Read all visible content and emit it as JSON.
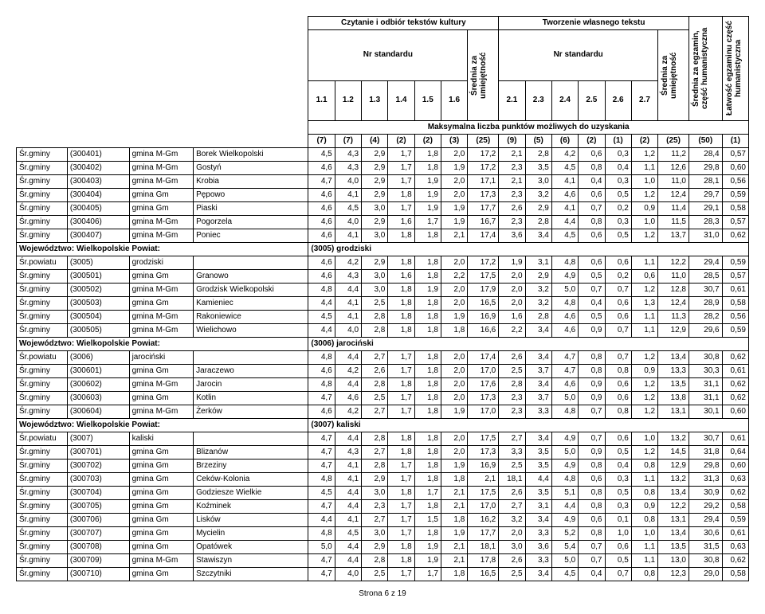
{
  "colors": {
    "text": "#000000",
    "bg": "#ffffff",
    "border": "#000000"
  },
  "headers": {
    "group1": "Czytanie i odbiór tekstów kultury",
    "group2": "Tworzenie własnego tekstu",
    "nrStd": "Nr standardu",
    "sredniaUm": "Średnia za umiejętność",
    "sredniaHum": "Średnia za egzamin, część humanistyczna",
    "latwosc": "Łatwość egzaminu część humanistyczna",
    "cols": [
      "1.1",
      "1.2",
      "1.3",
      "1.4",
      "1.5",
      "1.6",
      "2.1",
      "2.3",
      "2.4",
      "2.5",
      "2.6",
      "2.7"
    ],
    "maxLine": "Maksymalna liczba punktów możliwych do uzyskania",
    "maxVals": [
      "(7)",
      "(7)",
      "(4)",
      "(2)",
      "(2)",
      "(3)",
      "(25)",
      "(9)",
      "(5)",
      "(6)",
      "(2)",
      "(1)",
      "(2)",
      "(25)",
      "(50)",
      "(1)"
    ]
  },
  "rows": [
    {
      "t": "data",
      "sr": "Śr.gminy",
      "code": "(300401)",
      "type": "gmina M-Gm",
      "name": "Borek Wielkopolski",
      "v": [
        "4,5",
        "4,3",
        "2,9",
        "1,7",
        "1,8",
        "2,0",
        "17,2",
        "2,1",
        "2,8",
        "4,2",
        "0,6",
        "0,3",
        "1,2",
        "11,2",
        "28,4",
        "0,57"
      ]
    },
    {
      "t": "data",
      "sr": "Śr.gminy",
      "code": "(300402)",
      "type": "gmina M-Gm",
      "name": "Gostyń",
      "v": [
        "4,6",
        "4,3",
        "2,9",
        "1,7",
        "1,8",
        "1,9",
        "17,2",
        "2,3",
        "3,5",
        "4,5",
        "0,8",
        "0,4",
        "1,1",
        "12,6",
        "29,8",
        "0,60"
      ]
    },
    {
      "t": "data",
      "sr": "Śr.gminy",
      "code": "(300403)",
      "type": "gmina M-Gm",
      "name": "Krobia",
      "v": [
        "4,7",
        "4,0",
        "2,9",
        "1,7",
        "1,9",
        "2,0",
        "17,1",
        "2,1",
        "3,0",
        "4,1",
        "0,4",
        "0,3",
        "1,0",
        "11,0",
        "28,1",
        "0,56"
      ]
    },
    {
      "t": "data",
      "sr": "Śr.gminy",
      "code": "(300404)",
      "type": "gmina Gm",
      "name": "Pępowo",
      "v": [
        "4,6",
        "4,1",
        "2,9",
        "1,8",
        "1,9",
        "2,0",
        "17,3",
        "2,3",
        "3,2",
        "4,6",
        "0,6",
        "0,5",
        "1,2",
        "12,4",
        "29,7",
        "0,59"
      ]
    },
    {
      "t": "data",
      "sr": "Śr.gminy",
      "code": "(300405)",
      "type": "gmina Gm",
      "name": "Piaski",
      "v": [
        "4,6",
        "4,5",
        "3,0",
        "1,7",
        "1,9",
        "1,9",
        "17,7",
        "2,6",
        "2,9",
        "4,1",
        "0,7",
        "0,2",
        "0,9",
        "11,4",
        "29,1",
        "0,58"
      ]
    },
    {
      "t": "data",
      "sr": "Śr.gminy",
      "code": "(300406)",
      "type": "gmina M-Gm",
      "name": "Pogorzela",
      "v": [
        "4,6",
        "4,0",
        "2,9",
        "1,6",
        "1,7",
        "1,9",
        "16,7",
        "2,3",
        "2,8",
        "4,4",
        "0,8",
        "0,3",
        "1,0",
        "11,5",
        "28,3",
        "0,57"
      ]
    },
    {
      "t": "data",
      "sr": "Śr.gminy",
      "code": "(300407)",
      "type": "gmina M-Gm",
      "name": "Poniec",
      "v": [
        "4,6",
        "4,1",
        "3,0",
        "1,8",
        "1,8",
        "2,1",
        "17,4",
        "3,6",
        "3,4",
        "4,5",
        "0,6",
        "0,5",
        "1,2",
        "13,7",
        "31,0",
        "0,62"
      ]
    },
    {
      "t": "group",
      "label": "Województwo:   Wielkopolskie        Powiat:",
      "extra": "(3005) grodziski"
    },
    {
      "t": "data",
      "sr": "Śr.powiatu",
      "code": "(3005)",
      "type": "grodziski",
      "name": "",
      "v": [
        "4,6",
        "4,2",
        "2,9",
        "1,8",
        "1,8",
        "2,0",
        "17,2",
        "1,9",
        "3,1",
        "4,8",
        "0,6",
        "0,6",
        "1,1",
        "12,2",
        "29,4",
        "0,59"
      ]
    },
    {
      "t": "data",
      "sr": "Śr.gminy",
      "code": "(300501)",
      "type": "gmina Gm",
      "name": "Granowo",
      "v": [
        "4,6",
        "4,3",
        "3,0",
        "1,6",
        "1,8",
        "2,2",
        "17,5",
        "2,0",
        "2,9",
        "4,9",
        "0,5",
        "0,2",
        "0,6",
        "11,0",
        "28,5",
        "0,57"
      ]
    },
    {
      "t": "data",
      "sr": "Śr.gminy",
      "code": "(300502)",
      "type": "gmina M-Gm",
      "name": "Grodzisk Wielkopolski",
      "v": [
        "4,8",
        "4,4",
        "3,0",
        "1,8",
        "1,9",
        "2,0",
        "17,9",
        "2,0",
        "3,2",
        "5,0",
        "0,7",
        "0,7",
        "1,2",
        "12,8",
        "30,7",
        "0,61"
      ]
    },
    {
      "t": "data",
      "sr": "Śr.gminy",
      "code": "(300503)",
      "type": "gmina Gm",
      "name": "Kamieniec",
      "v": [
        "4,4",
        "4,1",
        "2,5",
        "1,8",
        "1,8",
        "2,0",
        "16,5",
        "2,0",
        "3,2",
        "4,8",
        "0,4",
        "0,6",
        "1,3",
        "12,4",
        "28,9",
        "0,58"
      ]
    },
    {
      "t": "data",
      "sr": "Śr.gminy",
      "code": "(300504)",
      "type": "gmina M-Gm",
      "name": "Rakoniewice",
      "v": [
        "4,5",
        "4,1",
        "2,8",
        "1,8",
        "1,8",
        "1,9",
        "16,9",
        "1,6",
        "2,8",
        "4,6",
        "0,5",
        "0,6",
        "1,1",
        "11,3",
        "28,2",
        "0,56"
      ]
    },
    {
      "t": "data",
      "sr": "Śr.gminy",
      "code": "(300505)",
      "type": "gmina M-Gm",
      "name": "Wielichowo",
      "v": [
        "4,4",
        "4,0",
        "2,8",
        "1,8",
        "1,8",
        "1,8",
        "16,6",
        "2,2",
        "3,4",
        "4,6",
        "0,9",
        "0,7",
        "1,1",
        "12,9",
        "29,6",
        "0,59"
      ]
    },
    {
      "t": "group",
      "label": "Województwo:   Wielkopolskie        Powiat:",
      "extra": "(3006) jarociński"
    },
    {
      "t": "data",
      "sr": "Śr.powiatu",
      "code": "(3006)",
      "type": "jarociński",
      "name": "",
      "v": [
        "4,8",
        "4,4",
        "2,7",
        "1,7",
        "1,8",
        "2,0",
        "17,4",
        "2,6",
        "3,4",
        "4,7",
        "0,8",
        "0,7",
        "1,2",
        "13,4",
        "30,8",
        "0,62"
      ]
    },
    {
      "t": "data",
      "sr": "Śr.gminy",
      "code": "(300601)",
      "type": "gmina Gm",
      "name": "Jaraczewo",
      "v": [
        "4,6",
        "4,2",
        "2,6",
        "1,7",
        "1,8",
        "2,0",
        "17,0",
        "2,5",
        "3,7",
        "4,7",
        "0,8",
        "0,8",
        "0,9",
        "13,3",
        "30,3",
        "0,61"
      ]
    },
    {
      "t": "data",
      "sr": "Śr.gminy",
      "code": "(300602)",
      "type": "gmina M-Gm",
      "name": "Jarocin",
      "v": [
        "4,8",
        "4,4",
        "2,8",
        "1,8",
        "1,8",
        "2,0",
        "17,6",
        "2,8",
        "3,4",
        "4,6",
        "0,9",
        "0,6",
        "1,2",
        "13,5",
        "31,1",
        "0,62"
      ]
    },
    {
      "t": "data",
      "sr": "Śr.gminy",
      "code": "(300603)",
      "type": "gmina Gm",
      "name": "Kotlin",
      "v": [
        "4,7",
        "4,6",
        "2,5",
        "1,7",
        "1,8",
        "2,0",
        "17,3",
        "2,3",
        "3,7",
        "5,0",
        "0,9",
        "0,6",
        "1,2",
        "13,8",
        "31,1",
        "0,62"
      ]
    },
    {
      "t": "data",
      "sr": "Śr.gminy",
      "code": "(300604)",
      "type": "gmina M-Gm",
      "name": "Żerków",
      "v": [
        "4,6",
        "4,2",
        "2,7",
        "1,7",
        "1,8",
        "1,9",
        "17,0",
        "2,3",
        "3,3",
        "4,8",
        "0,7",
        "0,8",
        "1,2",
        "13,1",
        "30,1",
        "0,60"
      ]
    },
    {
      "t": "group",
      "label": "Województwo:   Wielkopolskie        Powiat:",
      "extra": "(3007) kaliski"
    },
    {
      "t": "data",
      "sr": "Śr.powiatu",
      "code": "(3007)",
      "type": "kaliski",
      "name": "",
      "v": [
        "4,7",
        "4,4",
        "2,8",
        "1,8",
        "1,8",
        "2,0",
        "17,5",
        "2,7",
        "3,4",
        "4,9",
        "0,7",
        "0,6",
        "1,0",
        "13,2",
        "30,7",
        "0,61"
      ]
    },
    {
      "t": "data",
      "sr": "Śr.gminy",
      "code": "(300701)",
      "type": "gmina Gm",
      "name": "Blizanów",
      "v": [
        "4,7",
        "4,3",
        "2,7",
        "1,8",
        "1,8",
        "2,0",
        "17,3",
        "3,3",
        "3,5",
        "5,0",
        "0,9",
        "0,5",
        "1,2",
        "14,5",
        "31,8",
        "0,64"
      ]
    },
    {
      "t": "data",
      "sr": "Śr.gminy",
      "code": "(300702)",
      "type": "gmina Gm",
      "name": "Brzeziny",
      "v": [
        "4,7",
        "4,1",
        "2,8",
        "1,7",
        "1,8",
        "1,9",
        "16,9",
        "2,5",
        "3,5",
        "4,9",
        "0,8",
        "0,4",
        "0,8",
        "12,9",
        "29,8",
        "0,60"
      ]
    },
    {
      "t": "data",
      "sr": "Śr.gminy",
      "code": "(300703)",
      "type": "gmina Gm",
      "name": "Ceków-Kolonia",
      "v": [
        "4,8",
        "4,1",
        "2,9",
        "1,7",
        "1,8",
        "1,8",
        "2,1",
        "18,1",
        "4,4",
        "4,8",
        "0,6",
        "0,3",
        "1,1",
        "13,2",
        "31,3",
        "0,63"
      ]
    },
    {
      "t": "data",
      "sr": "Śr.gminy",
      "code": "(300704)",
      "type": "gmina Gm",
      "name": "Godziesze Wielkie",
      "v": [
        "4,5",
        "4,4",
        "3,0",
        "1,8",
        "1,7",
        "2,1",
        "17,5",
        "2,6",
        "3,5",
        "5,1",
        "0,8",
        "0,5",
        "0,8",
        "13,4",
        "30,9",
        "0,62"
      ]
    },
    {
      "t": "data",
      "sr": "Śr.gminy",
      "code": "(300705)",
      "type": "gmina Gm",
      "name": "Koźminek",
      "v": [
        "4,7",
        "4,4",
        "2,3",
        "1,7",
        "1,8",
        "2,1",
        "17,0",
        "2,7",
        "3,1",
        "4,4",
        "0,8",
        "0,3",
        "0,9",
        "12,2",
        "29,2",
        "0,58"
      ]
    },
    {
      "t": "data",
      "sr": "Śr.gminy",
      "code": "(300706)",
      "type": "gmina Gm",
      "name": "Lisków",
      "v": [
        "4,4",
        "4,1",
        "2,7",
        "1,7",
        "1,5",
        "1,8",
        "16,2",
        "3,2",
        "3,4",
        "4,9",
        "0,6",
        "0,1",
        "0,8",
        "13,1",
        "29,4",
        "0,59"
      ]
    },
    {
      "t": "data",
      "sr": "Śr.gminy",
      "code": "(300707)",
      "type": "gmina Gm",
      "name": "Mycielin",
      "v": [
        "4,8",
        "4,5",
        "3,0",
        "1,7",
        "1,8",
        "1,9",
        "17,7",
        "2,0",
        "3,3",
        "5,2",
        "0,8",
        "1,0",
        "1,0",
        "13,4",
        "30,6",
        "0,61"
      ]
    },
    {
      "t": "data",
      "sr": "Śr.gminy",
      "code": "(300708)",
      "type": "gmina Gm",
      "name": "Opatówek",
      "v": [
        "5,0",
        "4,4",
        "2,9",
        "1,8",
        "1,9",
        "2,1",
        "18,1",
        "3,0",
        "3,6",
        "5,4",
        "0,7",
        "0,6",
        "1,1",
        "13,5",
        "31,5",
        "0,63"
      ]
    },
    {
      "t": "data",
      "sr": "Śr.gminy",
      "code": "(300709)",
      "type": "gmina M-Gm",
      "name": "Stawiszyn",
      "v": [
        "4,7",
        "4,4",
        "2,8",
        "1,8",
        "1,9",
        "2,1",
        "17,8",
        "2,6",
        "3,3",
        "5,0",
        "0,7",
        "0,5",
        "1,1",
        "13,0",
        "30,8",
        "0,62"
      ]
    },
    {
      "t": "data",
      "sr": "Śr.gminy",
      "code": "(300710)",
      "type": "gmina Gm",
      "name": "Szczytniki",
      "v": [
        "4,7",
        "4,0",
        "2,5",
        "1,7",
        "1,7",
        "1,8",
        "16,5",
        "2,5",
        "3,4",
        "4,5",
        "0,4",
        "0,7",
        "0,8",
        "12,3",
        "29,0",
        "0,58"
      ]
    }
  ],
  "footer": "Strona 6 z 19"
}
